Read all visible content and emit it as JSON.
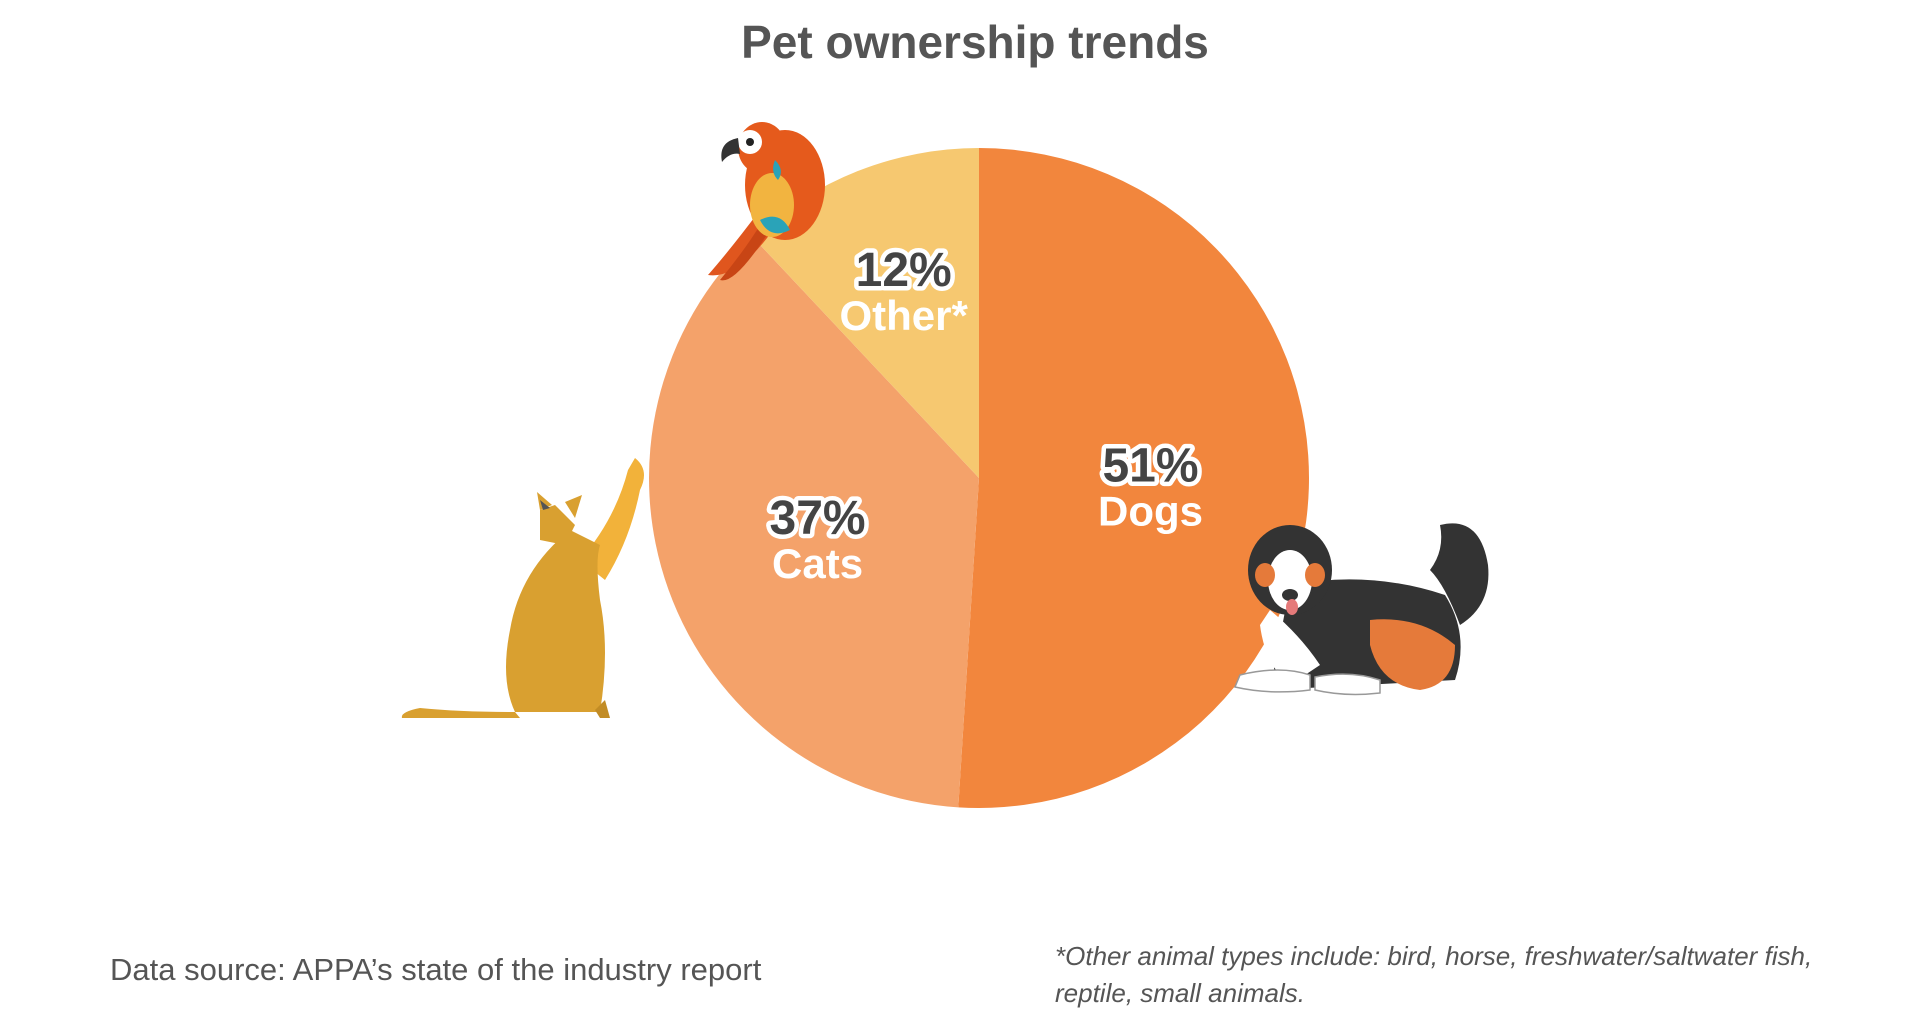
{
  "chart_data": {
    "type": "pie",
    "title": "Pet ownership trends",
    "slices": [
      {
        "label": "Dogs",
        "value": 51,
        "display": "51%",
        "color": "#F2863D"
      },
      {
        "label": "Cats",
        "value": 37,
        "display": "37%",
        "color": "#F4A26A"
      },
      {
        "label": "Other*",
        "value": 12,
        "display": "12%",
        "color": "#F6C870"
      }
    ],
    "start_angle": "12 o'clock",
    "direction": "clockwise",
    "legend": "none (labels inside slices)"
  },
  "footer": {
    "source": "Data source: APPA’s state of the industry report",
    "note_line1": "*Other animal types include: bird, horse, freshwater/saltwater fish,",
    "note_line2": "reptile, small animals."
  },
  "illustrations": [
    "parrot-illustration",
    "cat-illustration",
    "dog-illustration"
  ]
}
